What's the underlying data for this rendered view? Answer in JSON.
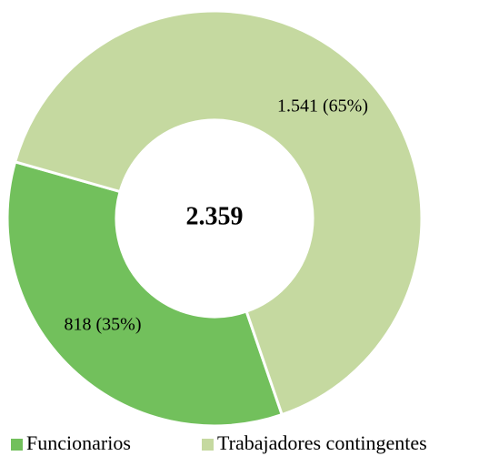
{
  "chart_data": {
    "type": "donut",
    "categories": [
      "Funcionarios",
      "Trabajadores contingentes"
    ],
    "values": [
      818,
      1541
    ],
    "value_labels": [
      "818 (35%)",
      "1.541 (65%)"
    ],
    "colors": [
      "#72c05c",
      "#c5d9a0"
    ],
    "center_label": "2.359"
  }
}
